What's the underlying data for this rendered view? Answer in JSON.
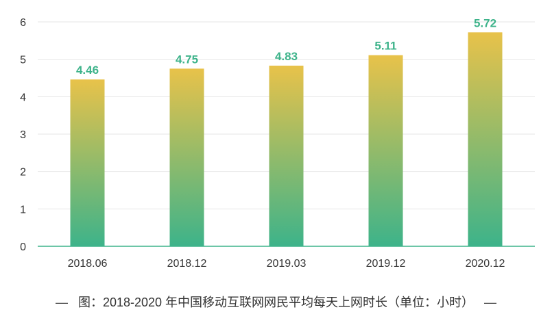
{
  "chart_data": {
    "type": "bar",
    "categories": [
      "2018.06",
      "2018.12",
      "2019.03",
      "2019.12",
      "2020.12"
    ],
    "values": [
      4.46,
      4.75,
      4.83,
      5.11,
      5.72
    ],
    "value_labels": [
      "4.46",
      "4.75",
      "4.83",
      "5.11",
      "5.72"
    ],
    "ylim": [
      0,
      6
    ],
    "yticks": [
      "0",
      "1",
      "2",
      "3",
      "4",
      "5",
      "6"
    ],
    "grid": true,
    "legend": "none",
    "colors": {
      "bar_top": "#e8c24a",
      "bar_bottom": "#3db38a",
      "label": "#3db38a",
      "grid": "#e6e6e6",
      "axis": "#3db38a"
    }
  },
  "caption": {
    "dash": "—",
    "text": "图：2018-2020 年中国移动互联网网民平均每天上网时长（单位：小时）"
  }
}
